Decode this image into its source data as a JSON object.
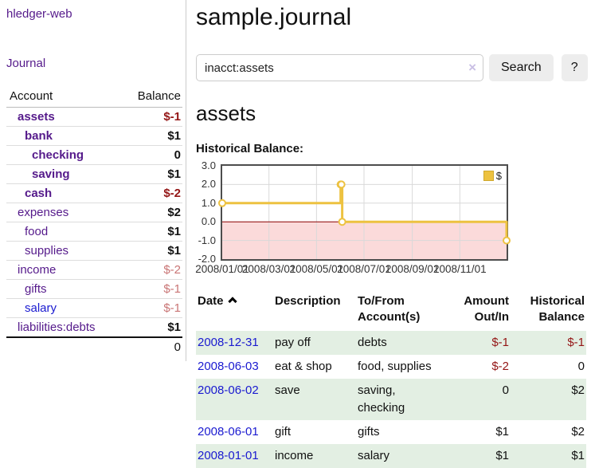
{
  "sidebar": {
    "app_title": "hledger-web",
    "nav": {
      "journal_label": "Journal"
    },
    "accounts_table": {
      "headers": {
        "account": "Account",
        "balance": "Balance"
      },
      "rows": [
        {
          "name": "assets",
          "balance": "$-1",
          "depth": 1,
          "bold": true
        },
        {
          "name": "bank",
          "balance": "$1",
          "depth": 2,
          "bold": true
        },
        {
          "name": "checking",
          "balance": "0",
          "depth": 3,
          "bold": true
        },
        {
          "name": "saving",
          "balance": "$1",
          "depth": 3,
          "bold": true
        },
        {
          "name": "cash",
          "balance": "$-2",
          "depth": 2,
          "bold": true
        },
        {
          "name": "expenses",
          "balance": "$2",
          "depth": 1,
          "bold": false
        },
        {
          "name": "food",
          "balance": "$1",
          "depth": 2,
          "bold": false
        },
        {
          "name": "supplies",
          "balance": "$1",
          "depth": 2,
          "bold": false
        },
        {
          "name": "income",
          "balance": "$-2",
          "depth": 1,
          "bold": false
        },
        {
          "name": "gifts",
          "balance": "$-1",
          "depth": 2,
          "bold": false
        },
        {
          "name": "salary",
          "balance": "$-1",
          "depth": 2,
          "bold": false
        },
        {
          "name": "liabilities:debts",
          "balance": "$1",
          "depth": 1,
          "bold": false
        }
      ],
      "total": "0"
    }
  },
  "header": {
    "title": "sample.journal"
  },
  "search": {
    "value": "inacct:assets",
    "clear_icon": "×",
    "button_label": "Search",
    "help_label": "?"
  },
  "account_page": {
    "heading": "assets",
    "chart_label": "Historical Balance:"
  },
  "chart_data": {
    "type": "line",
    "title": "Historical Balance",
    "step": true,
    "grid": true,
    "legend_position": "top-right",
    "x_range": [
      "2008-01-01",
      "2008-12-31"
    ],
    "ylim": [
      -2,
      3
    ],
    "y_ticks": [
      {
        "value": 3,
        "label": "3.0"
      },
      {
        "value": 2,
        "label": "2.0"
      },
      {
        "value": 1,
        "label": "1.0"
      },
      {
        "value": 0,
        "label": "0.0"
      },
      {
        "value": -1,
        "label": "-1.0"
      },
      {
        "value": -2,
        "label": "-2.0"
      }
    ],
    "x_ticks": [
      {
        "date": "2008-01-01",
        "label": "2008/01/01"
      },
      {
        "date": "2008-03-01",
        "label": "2008/03/01"
      },
      {
        "date": "2008-05-01",
        "label": "2008/05/01"
      },
      {
        "date": "2008-07-01",
        "label": "2008/07/01"
      },
      {
        "date": "2008-09-01",
        "label": "2008/09/01"
      },
      {
        "date": "2008-11-01",
        "label": "2008/11/01"
      }
    ],
    "series": [
      {
        "name": "$",
        "color": "#edc240",
        "points": [
          {
            "date": "2008-01-01",
            "value": 1
          },
          {
            "date": "2008-06-01",
            "value": 2
          },
          {
            "date": "2008-06-02",
            "value": 2
          },
          {
            "date": "2008-06-03",
            "value": 0
          },
          {
            "date": "2008-12-31",
            "value": -1
          }
        ]
      }
    ],
    "negative_region_color": "#fbdada",
    "zero_line_color": "#8b0000",
    "gridline_color": "#d9d9d9"
  },
  "register_table": {
    "headers": {
      "date": "Date",
      "description": "Description",
      "accounts": "To/From Account(s)",
      "amount": "Amount Out/In",
      "balance": "Historical Balance"
    },
    "sort": {
      "column": "date",
      "direction": "ascending"
    },
    "rows": [
      {
        "date": "2008-12-31",
        "description": "pay off",
        "accounts": "debts",
        "amount": "$-1",
        "balance": "$-1"
      },
      {
        "date": "2008-06-03",
        "description": "eat & shop",
        "accounts": "food, supplies",
        "amount": "$-2",
        "balance": "0"
      },
      {
        "date": "2008-06-02",
        "description": "save",
        "accounts": "saving,\nchecking",
        "amount": "0",
        "balance": "$2"
      },
      {
        "date": "2008-06-01",
        "description": "gift",
        "accounts": "gifts",
        "amount": "$1",
        "balance": "$2"
      },
      {
        "date": "2008-01-01",
        "description": "income",
        "accounts": "salary",
        "amount": "$1",
        "balance": "$1"
      }
    ]
  }
}
